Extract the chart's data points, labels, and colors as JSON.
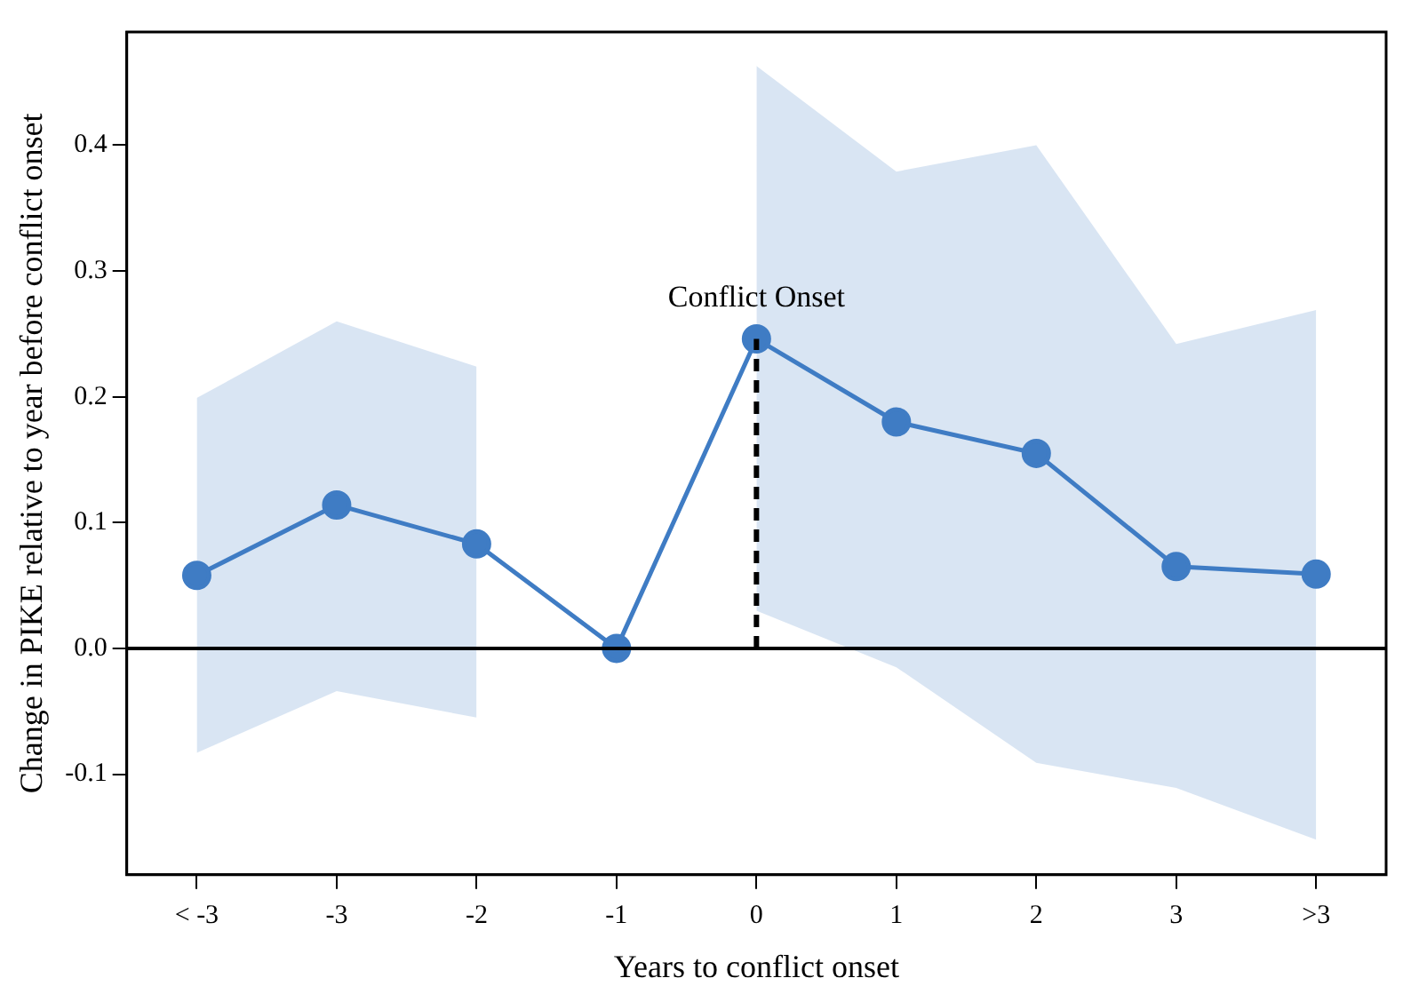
{
  "chart_data": {
    "type": "line",
    "xlabel": "Years to conflict onset",
    "ylabel": "Change in PIKE relative to year before conflict onset",
    "categories": [
      "< -3",
      "-3",
      "-2",
      "-1",
      "0",
      "1",
      "2",
      "3",
      ">3"
    ],
    "series": [
      {
        "color": "#3f7cc4",
        "values": [
          0.058,
          0.114,
          0.083,
          0,
          0.246,
          0.18,
          0.155,
          0.065,
          0.059
        ],
        "lower": [
          -0.083,
          -0.034,
          -0.055,
          null,
          0.03,
          -0.015,
          -0.091,
          -0.111,
          -0.152
        ],
        "upper": [
          0.199,
          0.26,
          0.224,
          null,
          0.463,
          0.379,
          0.4,
          0.242,
          0.269
        ]
      }
    ],
    "ylim": [
      -0.18,
      0.49
    ],
    "yticks": [
      -0.1,
      {
        "value": 0,
        "label": "0.0"
      },
      0.1,
      0.2,
      0.3,
      0.4
    ],
    "ref_lines": [
      {
        "axis": "y",
        "value": 0,
        "color": "#000000",
        "line_style": "solid"
      },
      {
        "axis": "x",
        "value": "0",
        "label": "Conflict Onset",
        "color": "#000000",
        "line_style": "dashed"
      }
    ],
    "marker": "circle",
    "grid": false,
    "legend": false
  }
}
